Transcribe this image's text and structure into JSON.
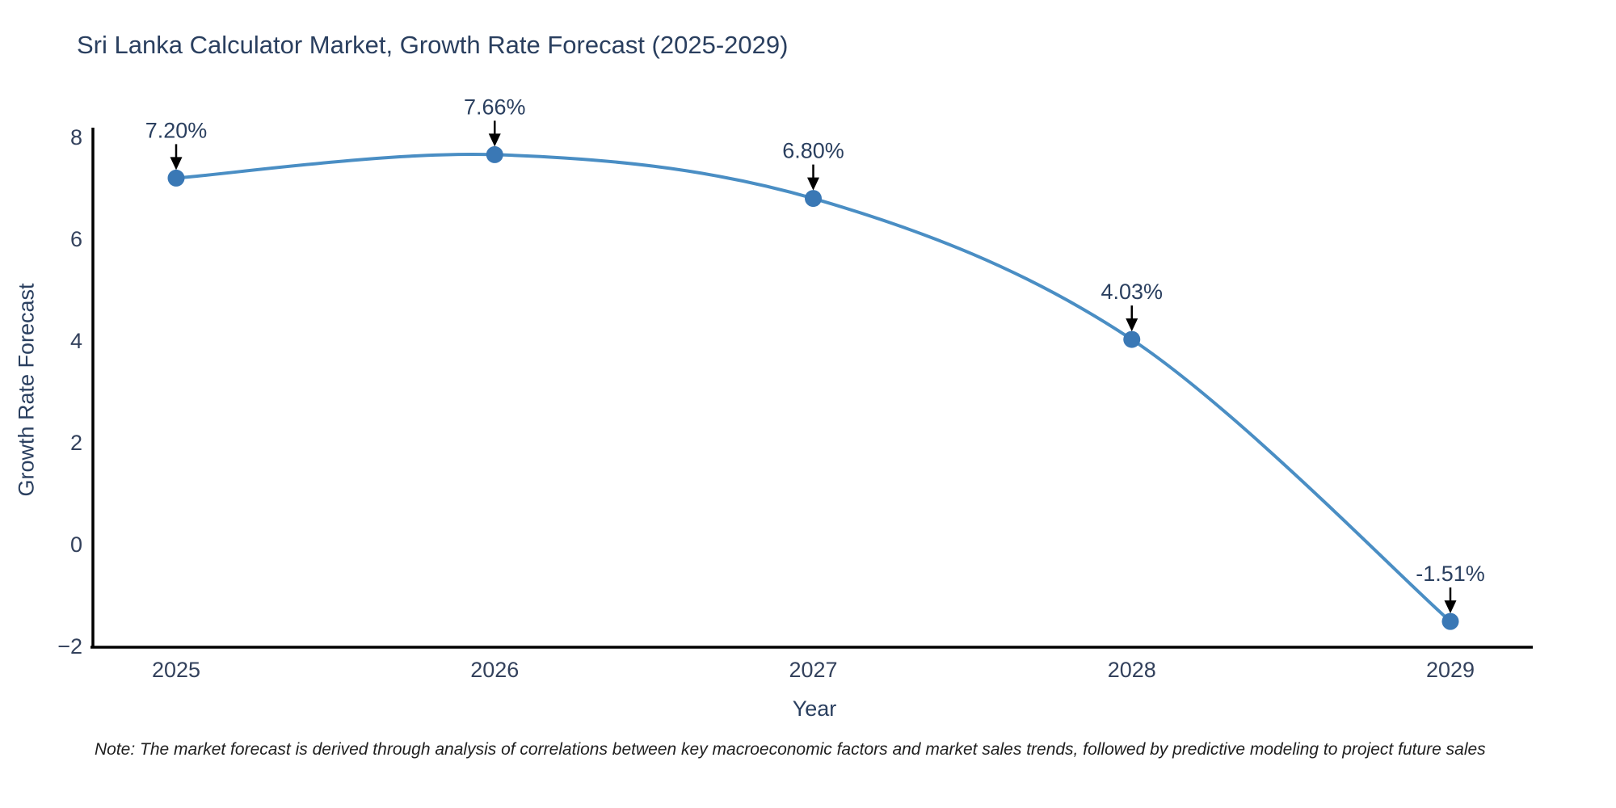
{
  "title": "Sri Lanka Calculator Market, Growth Rate Forecast (2025-2029)",
  "note": "Note: The market forecast is derived through analysis of correlations between key macroeconomic factors and market sales trends, followed by predictive modeling to project future sales",
  "chart_data": {
    "type": "line",
    "title": "Sri Lanka Calculator Market, Growth Rate Forecast (2025-2029)",
    "xlabel": "Year",
    "ylabel": "Growth Rate Forecast",
    "categories": [
      2025,
      2026,
      2027,
      2028,
      2029
    ],
    "values": [
      7.2,
      7.66,
      6.8,
      4.03,
      -1.51
    ],
    "point_labels": [
      "7.20%",
      "7.66%",
      "6.80%",
      "4.03%",
      "-1.51%"
    ],
    "x_tick_labels": [
      "2025",
      "2026",
      "2027",
      "2028",
      "2029"
    ],
    "y_tick_values": [
      8,
      6,
      4,
      2,
      0,
      -2
    ],
    "y_tick_labels": [
      "8",
      "6",
      "4",
      "2",
      "0",
      "−2"
    ],
    "ylim": [
      -2.05,
      8.2
    ],
    "line_shape": "spline",
    "grid": false,
    "legend": "none",
    "colors": {
      "line": "#4a8ec4",
      "marker": "#3a78b5",
      "axis": "#000000",
      "tick_text": "#33415c",
      "label_text": "#2a3f5f",
      "annotation_text": "#2a3f5f",
      "arrow": "#000000",
      "background": "#ffffff"
    }
  }
}
